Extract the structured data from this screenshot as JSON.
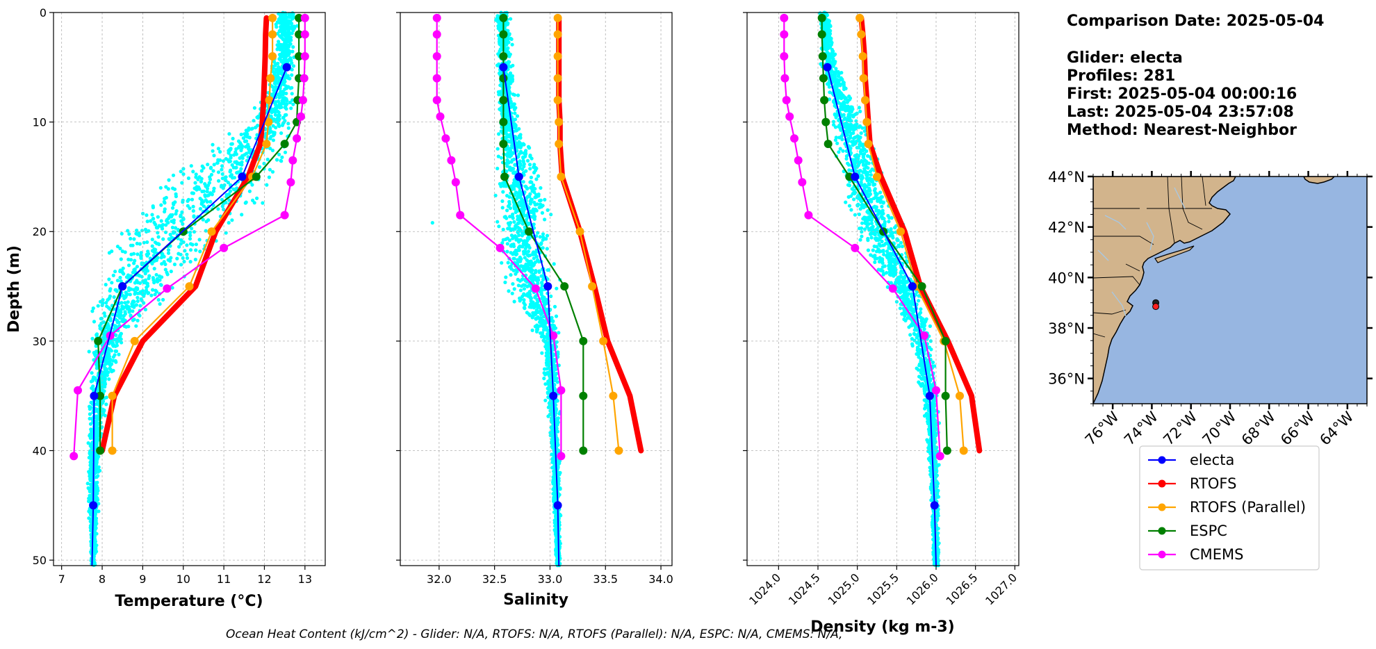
{
  "info": {
    "comparison_date": "Comparison Date: 2025-05-04",
    "glider": "Glider: electa",
    "profiles": "Profiles: 281",
    "first": "First: 2025-05-04 00:00:16",
    "last": "Last: 2025-05-04 23:57:08",
    "method": "Method: Nearest-Neighbor"
  },
  "footer": "Ocean Heat Content (kJ/cm^2) - Glider: N/A,  RTOFS: N/A,  RTOFS (Parallel): N/A,  ESPC: N/A,  CMEMS: N/A,",
  "colors": {
    "electa": "#0000ff",
    "RTOFS": "#ff0000",
    "RTOFS (Parallel)": "#ffa500",
    "ESPC": "#008000",
    "CMEMS": "#ff00ff",
    "scatter": "#00ffff",
    "land": "#d2b48c",
    "ocean": "#97b6e1"
  },
  "legend": [
    "electa",
    "RTOFS",
    "RTOFS (Parallel)",
    "ESPC",
    "CMEMS"
  ],
  "chart_data": [
    {
      "type": "line",
      "xlabel": "Temperature (°C)",
      "ylabel": "Depth (m)",
      "xlim": [
        6.8,
        13.5
      ],
      "ylim": [
        50.5,
        0
      ],
      "xticks": [
        "7",
        "8",
        "9",
        "10",
        "11",
        "12",
        "13"
      ],
      "yticks": [
        "0",
        "10",
        "20",
        "30",
        "40",
        "50"
      ],
      "grid": true,
      "series": [
        {
          "name": "electa",
          "depth": [
            5,
            15,
            25,
            35,
            45,
            50.5
          ],
          "values": [
            12.55,
            11.45,
            8.5,
            7.8,
            7.78,
            7.75
          ]
        },
        {
          "name": "RTOFS",
          "depth": [
            0.5,
            2,
            4,
            6,
            8,
            10,
            12,
            15,
            20,
            25,
            30,
            35,
            40
          ],
          "values": [
            12.05,
            12.03,
            12.02,
            12.0,
            11.98,
            11.95,
            11.9,
            11.6,
            10.8,
            10.3,
            9.0,
            8.3,
            8.0
          ]
        },
        {
          "name": "RTOFS (Parallel)",
          "depth": [
            0.5,
            2,
            4,
            6,
            8,
            10,
            12,
            15,
            20,
            25,
            30,
            35,
            40
          ],
          "values": [
            12.2,
            12.2,
            12.2,
            12.15,
            12.12,
            12.1,
            12.05,
            11.7,
            10.7,
            10.15,
            8.8,
            8.25,
            8.25
          ]
        },
        {
          "name": "ESPC",
          "depth": [
            0.5,
            2,
            4,
            6,
            8,
            10,
            12,
            15,
            20,
            25,
            30,
            35,
            40
          ],
          "values": [
            12.85,
            12.85,
            12.85,
            12.85,
            12.82,
            12.8,
            12.5,
            11.8,
            10.0,
            8.5,
            7.9,
            7.95,
            7.95
          ]
        },
        {
          "name": "CMEMS",
          "depth": [
            0.5,
            2,
            4,
            6,
            8,
            9.5,
            11.5,
            13.5,
            15.5,
            18.5,
            21.5,
            25.2,
            29.5,
            34.5,
            40.5
          ],
          "values": [
            13.0,
            13.0,
            13.0,
            12.98,
            12.95,
            12.9,
            12.8,
            12.7,
            12.65,
            12.5,
            11.0,
            9.6,
            8.2,
            7.4,
            7.3
          ]
        }
      ]
    },
    {
      "type": "line",
      "xlabel": "Salinity",
      "xlim": [
        31.65,
        34.1
      ],
      "ylim": [
        50.5,
        0
      ],
      "xticks": [
        "32.0",
        "32.5",
        "33.0",
        "33.5",
        "34.0"
      ],
      "grid": true,
      "series": [
        {
          "name": "electa",
          "depth": [
            5,
            15,
            25,
            35,
            45,
            50.5
          ],
          "values": [
            32.58,
            32.72,
            32.98,
            33.03,
            33.07,
            33.08
          ]
        },
        {
          "name": "RTOFS",
          "depth": [
            0.5,
            2,
            4,
            6,
            8,
            10,
            12,
            15,
            20,
            25,
            30,
            35,
            40
          ],
          "values": [
            33.08,
            33.08,
            33.08,
            33.08,
            33.08,
            33.09,
            33.09,
            33.11,
            33.27,
            33.4,
            33.52,
            33.72,
            33.82
          ]
        },
        {
          "name": "RTOFS (Parallel)",
          "depth": [
            0.5,
            2,
            4,
            6,
            8,
            10,
            12,
            15,
            20,
            25,
            30,
            35,
            40
          ],
          "values": [
            33.07,
            33.07,
            33.07,
            33.07,
            33.07,
            33.08,
            33.08,
            33.1,
            33.27,
            33.38,
            33.48,
            33.57,
            33.62
          ]
        },
        {
          "name": "ESPC",
          "depth": [
            0.5,
            2,
            4,
            6,
            8,
            10,
            12,
            15,
            20,
            25,
            30,
            35,
            40
          ],
          "values": [
            32.58,
            32.58,
            32.58,
            32.58,
            32.58,
            32.58,
            32.58,
            32.59,
            32.81,
            33.13,
            33.3,
            33.3,
            33.3
          ]
        },
        {
          "name": "CMEMS",
          "depth": [
            0.5,
            2,
            4,
            6,
            8,
            9.5,
            11.5,
            13.5,
            15.5,
            18.5,
            21.5,
            25.2,
            29.5,
            34.5,
            40.5
          ],
          "values": [
            31.98,
            31.98,
            31.98,
            31.98,
            31.98,
            32.01,
            32.06,
            32.11,
            32.15,
            32.19,
            32.55,
            32.87,
            33.03,
            33.1,
            33.1
          ]
        }
      ]
    },
    {
      "type": "line",
      "xlabel": "Density (kg m-3)",
      "xlim": [
        1023.6,
        1027.05
      ],
      "ylim": [
        50.5,
        0
      ],
      "xticks": [
        "1024.0",
        "1024.5",
        "1025.0",
        "1025.5",
        "1026.0",
        "1026.5",
        "1027.0"
      ],
      "grid": true,
      "series": [
        {
          "name": "electa",
          "depth": [
            5,
            15,
            25,
            35,
            45,
            50.5
          ],
          "values": [
            1024.62,
            1024.97,
            1025.7,
            1025.92,
            1025.98,
            1026.0
          ]
        },
        {
          "name": "RTOFS",
          "depth": [
            0.5,
            2,
            4,
            6,
            8,
            10,
            12,
            15,
            20,
            25,
            30,
            35,
            40
          ],
          "values": [
            1025.05,
            1025.07,
            1025.09,
            1025.1,
            1025.12,
            1025.14,
            1025.16,
            1025.3,
            1025.6,
            1025.8,
            1026.15,
            1026.45,
            1026.55
          ]
        },
        {
          "name": "RTOFS (Parallel)",
          "depth": [
            0.5,
            2,
            4,
            6,
            8,
            10,
            12,
            15,
            20,
            25,
            30,
            35,
            40
          ],
          "values": [
            1025.03,
            1025.05,
            1025.07,
            1025.08,
            1025.1,
            1025.12,
            1025.14,
            1025.25,
            1025.55,
            1025.75,
            1026.1,
            1026.3,
            1026.35
          ]
        },
        {
          "name": "ESPC",
          "depth": [
            0.5,
            2,
            4,
            6,
            8,
            10,
            12,
            15,
            20,
            25,
            30,
            35,
            40
          ],
          "values": [
            1024.55,
            1024.55,
            1024.56,
            1024.57,
            1024.58,
            1024.6,
            1024.63,
            1024.9,
            1025.33,
            1025.82,
            1026.12,
            1026.12,
            1026.14
          ]
        },
        {
          "name": "CMEMS",
          "depth": [
            0.5,
            2,
            4,
            6,
            8,
            9.5,
            11.5,
            13.5,
            15.5,
            18.5,
            21.5,
            25.2,
            29.5,
            34.5,
            40.5
          ],
          "values": [
            1024.07,
            1024.07,
            1024.07,
            1024.08,
            1024.1,
            1024.14,
            1024.2,
            1024.25,
            1024.3,
            1024.38,
            1024.97,
            1025.45,
            1025.85,
            1026.0,
            1026.05
          ]
        }
      ]
    }
  ],
  "scatter_envelope": {
    "temperature": {
      "depth": [
        0,
        5,
        10,
        15,
        20,
        25,
        30,
        35,
        40,
        45,
        50.5
      ],
      "min": [
        12.2,
        12.1,
        11.4,
        9.2,
        7.8,
        7.65,
        7.62,
        7.62,
        7.62,
        7.62,
        7.7
      ],
      "max": [
        12.9,
        12.8,
        12.9,
        12.75,
        11.6,
        10.0,
        8.6,
        8.2,
        8.0,
        7.95,
        7.85
      ]
    },
    "salinity": {
      "depth": [
        0,
        5,
        10,
        15,
        20,
        25,
        30,
        35,
        40,
        45,
        50.5
      ],
      "min": [
        32.5,
        32.5,
        32.5,
        32.45,
        32.45,
        32.55,
        32.9,
        32.95,
        33.0,
        33.02,
        33.05
      ],
      "max": [
        32.65,
        32.68,
        32.75,
        33.0,
        33.1,
        33.1,
        33.1,
        33.1,
        33.1,
        33.1,
        33.1
      ]
    },
    "density": {
      "depth": [
        0,
        5,
        10,
        15,
        20,
        25,
        30,
        35,
        40,
        45,
        50.5
      ],
      "min": [
        1024.5,
        1024.5,
        1024.6,
        1024.72,
        1024.95,
        1025.3,
        1025.65,
        1025.8,
        1025.88,
        1025.92,
        1025.95
      ],
      "max": [
        1024.65,
        1024.8,
        1025.15,
        1025.4,
        1025.65,
        1025.85,
        1026.0,
        1026.05,
        1026.05,
        1026.05,
        1026.05
      ]
    }
  },
  "map": {
    "lat_labels": [
      "44°N",
      "42°N",
      "40°N",
      "38°N",
      "36°N"
    ],
    "lat_values": [
      44,
      42,
      40,
      38,
      36
    ],
    "lon_labels": [
      "76°W",
      "74°W",
      "72°W",
      "70°W",
      "68°W",
      "66°W",
      "64°W"
    ],
    "lon_values": [
      -76,
      -74,
      -72,
      -70,
      -68,
      -66,
      -64
    ],
    "extent": {
      "lon": [
        -77,
        -63
      ],
      "lat": [
        35,
        44
      ]
    },
    "glider_positions": [
      [
        -73.8,
        39.0
      ],
      [
        -73.8,
        38.85
      ]
    ]
  }
}
